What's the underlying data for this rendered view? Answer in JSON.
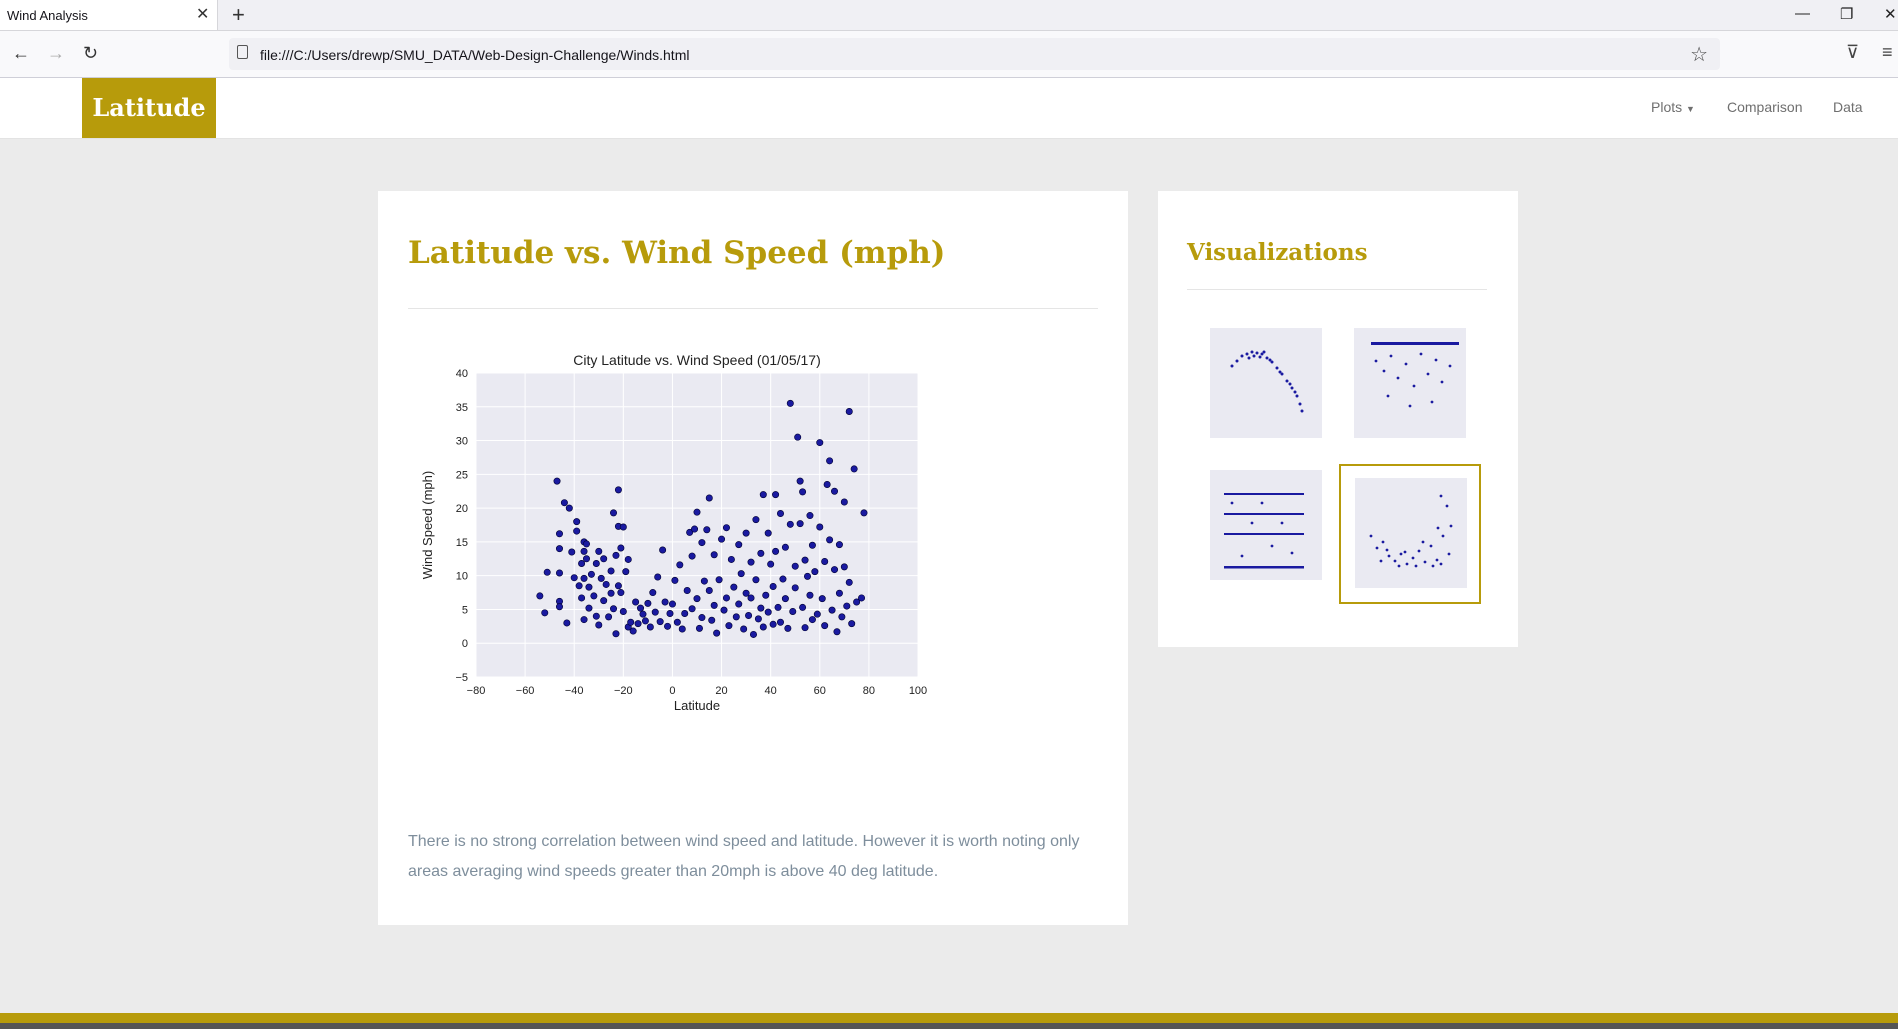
{
  "browser": {
    "tab_title": "Wind Analysis",
    "url": "file:///C:/Users/drewp/SMU_DATA/Web-Design-Challenge/Winds.html"
  },
  "site": {
    "brand": "Latitude",
    "nav": {
      "plots": "Plots",
      "comparison": "Comparison",
      "data": "Data"
    },
    "accent_color": "#b79b0b"
  },
  "main": {
    "title": "Latitude vs. Wind Speed (mph)",
    "description": "There is no strong correlation between wind speed and latitude. However it is worth noting only areas averaging wind speeds greater than 20mph is above 40 deg latitude."
  },
  "sidebar": {
    "title": "Visualizations",
    "thumbnails": [
      {
        "icon": "temperature-plot-thumbnail",
        "selected": false
      },
      {
        "icon": "humidity-plot-thumbnail",
        "selected": false
      },
      {
        "icon": "cloudiness-plot-thumbnail",
        "selected": false
      },
      {
        "icon": "wind-speed-plot-thumbnail",
        "selected": true
      }
    ]
  },
  "chart_data": {
    "type": "scatter",
    "title": "City Latitude vs. Wind Speed (01/05/17)",
    "xlabel": "Latitude",
    "ylabel": "Wind Speed (mph)",
    "xlim": [
      -80,
      100
    ],
    "ylim": [
      -5,
      40
    ],
    "xticks": [
      "−80",
      "−60",
      "−40",
      "−20",
      "0",
      "20",
      "40",
      "60",
      "80",
      "100"
    ],
    "yticks": [
      "−5",
      "0",
      "5",
      "10",
      "15",
      "20",
      "25",
      "30",
      "35",
      "40"
    ],
    "grid": true,
    "point_color": "#1a1aa0",
    "points": [
      [
        -54,
        7
      ],
      [
        -52,
        4.5
      ],
      [
        -51,
        10.5
      ],
      [
        -47,
        24
      ],
      [
        -46,
        16.2
      ],
      [
        -46,
        14
      ],
      [
        -46,
        10.4
      ],
      [
        -46,
        6.2
      ],
      [
        -46,
        5.4
      ],
      [
        -44,
        20.8
      ],
      [
        -43,
        3
      ],
      [
        -42,
        20
      ],
      [
        -41,
        13.5
      ],
      [
        -40,
        9.7
      ],
      [
        -39,
        18
      ],
      [
        -39,
        16.6
      ],
      [
        -38,
        8.5
      ],
      [
        -37,
        11.8
      ],
      [
        -37,
        6.7
      ],
      [
        -36,
        15
      ],
      [
        -36,
        13.6
      ],
      [
        -36,
        9.6
      ],
      [
        -36,
        3.5
      ],
      [
        -35,
        14.7
      ],
      [
        -35,
        12.5
      ],
      [
        -34,
        8.3
      ],
      [
        -34,
        5.2
      ],
      [
        -33,
        10.2
      ],
      [
        -32,
        7
      ],
      [
        -31,
        11.8
      ],
      [
        -31,
        4
      ],
      [
        -30,
        13.6
      ],
      [
        -30,
        2.7
      ],
      [
        -29,
        9.6
      ],
      [
        -28,
        12.5
      ],
      [
        -28,
        6.3
      ],
      [
        -27,
        8.7
      ],
      [
        -26,
        3.9
      ],
      [
        -25,
        10.7
      ],
      [
        -25,
        7.4
      ],
      [
        -24,
        19.3
      ],
      [
        -24,
        5.1
      ],
      [
        -23,
        13
      ],
      [
        -23,
        1.4
      ],
      [
        -22,
        17.3
      ],
      [
        -22,
        22.7
      ],
      [
        -22,
        8.5
      ],
      [
        -21,
        14.1
      ],
      [
        -21,
        7.5
      ],
      [
        -20,
        17.2
      ],
      [
        -20,
        4.7
      ],
      [
        -19,
        10.6
      ],
      [
        -18,
        12.4
      ],
      [
        -18,
        2.4
      ],
      [
        -17,
        3.1
      ],
      [
        -16,
        1.8
      ],
      [
        -15,
        6.1
      ],
      [
        -14,
        2.9
      ],
      [
        -13,
        5.2
      ],
      [
        -12,
        4.3
      ],
      [
        -11,
        3.3
      ],
      [
        -10,
        5.9
      ],
      [
        -9,
        2.4
      ],
      [
        -8,
        7.5
      ],
      [
        -7,
        4.6
      ],
      [
        -6,
        9.8
      ],
      [
        -5,
        3.2
      ],
      [
        -4,
        13.8
      ],
      [
        -3,
        6.1
      ],
      [
        -2,
        2.5
      ],
      [
        -1,
        4.4
      ],
      [
        0,
        5.8
      ],
      [
        1,
        9.3
      ],
      [
        2,
        3.1
      ],
      [
        3,
        11.6
      ],
      [
        4,
        2.1
      ],
      [
        5,
        4.4
      ],
      [
        6,
        7.8
      ],
      [
        7,
        16.4
      ],
      [
        8,
        5.1
      ],
      [
        8,
        12.9
      ],
      [
        9,
        16.9
      ],
      [
        10,
        6.6
      ],
      [
        10,
        19.4
      ],
      [
        11,
        2.2
      ],
      [
        12,
        3.8
      ],
      [
        12,
        14.9
      ],
      [
        13,
        9.2
      ],
      [
        14,
        16.8
      ],
      [
        15,
        7.8
      ],
      [
        15,
        21.5
      ],
      [
        16,
        3.4
      ],
      [
        17,
        13.1
      ],
      [
        17,
        5.6
      ],
      [
        18,
        1.5
      ],
      [
        19,
        9.4
      ],
      [
        20,
        15.4
      ],
      [
        21,
        4.9
      ],
      [
        22,
        6.7
      ],
      [
        22,
        17.1
      ],
      [
        23,
        2.6
      ],
      [
        24,
        12.4
      ],
      [
        25,
        8.3
      ],
      [
        26,
        3.9
      ],
      [
        27,
        14.6
      ],
      [
        27,
        5.8
      ],
      [
        28,
        10.3
      ],
      [
        29,
        2.1
      ],
      [
        30,
        7.4
      ],
      [
        30,
        16.3
      ],
      [
        31,
        4.1
      ],
      [
        32,
        12
      ],
      [
        32,
        6.7
      ],
      [
        33,
        1.3
      ],
      [
        34,
        9.4
      ],
      [
        34,
        18.3
      ],
      [
        35,
        3.6
      ],
      [
        36,
        5.2
      ],
      [
        36,
        13.3
      ],
      [
        37,
        22
      ],
      [
        37,
        2.4
      ],
      [
        38,
        7.1
      ],
      [
        39,
        4.6
      ],
      [
        39,
        16.3
      ],
      [
        40,
        11.7
      ],
      [
        41,
        2.8
      ],
      [
        41,
        8.4
      ],
      [
        42,
        13.6
      ],
      [
        42,
        22
      ],
      [
        43,
        5.3
      ],
      [
        44,
        19.2
      ],
      [
        44,
        3.1
      ],
      [
        45,
        9.5
      ],
      [
        46,
        6.6
      ],
      [
        46,
        14.2
      ],
      [
        47,
        2.2
      ],
      [
        48,
        17.6
      ],
      [
        48,
        35.5
      ],
      [
        49,
        4.7
      ],
      [
        50,
        11.4
      ],
      [
        50,
        8.2
      ],
      [
        51,
        30.5
      ],
      [
        52,
        24
      ],
      [
        52,
        17.7
      ],
      [
        53,
        5.3
      ],
      [
        53,
        22.4
      ],
      [
        54,
        2.3
      ],
      [
        54,
        12.3
      ],
      [
        55,
        9.9
      ],
      [
        56,
        18.9
      ],
      [
        56,
        7.1
      ],
      [
        57,
        3.5
      ],
      [
        57,
        14.5
      ],
      [
        58,
        10.6
      ],
      [
        59,
        4.3
      ],
      [
        60,
        17.2
      ],
      [
        60,
        29.7
      ],
      [
        61,
        6.6
      ],
      [
        62,
        12.1
      ],
      [
        62,
        2.6
      ],
      [
        63,
        23.5
      ],
      [
        64,
        27
      ],
      [
        64,
        15.3
      ],
      [
        65,
        4.9
      ],
      [
        66,
        10.9
      ],
      [
        66,
        22.5
      ],
      [
        67,
        1.7
      ],
      [
        68,
        7.4
      ],
      [
        68,
        14.6
      ],
      [
        69,
        3.9
      ],
      [
        70,
        20.9
      ],
      [
        70,
        11.3
      ],
      [
        71,
        5.5
      ],
      [
        72,
        34.3
      ],
      [
        72,
        9
      ],
      [
        73,
        2.9
      ],
      [
        74,
        25.8
      ],
      [
        75,
        6.1
      ],
      [
        77,
        6.7
      ],
      [
        78,
        19.3
      ]
    ]
  }
}
